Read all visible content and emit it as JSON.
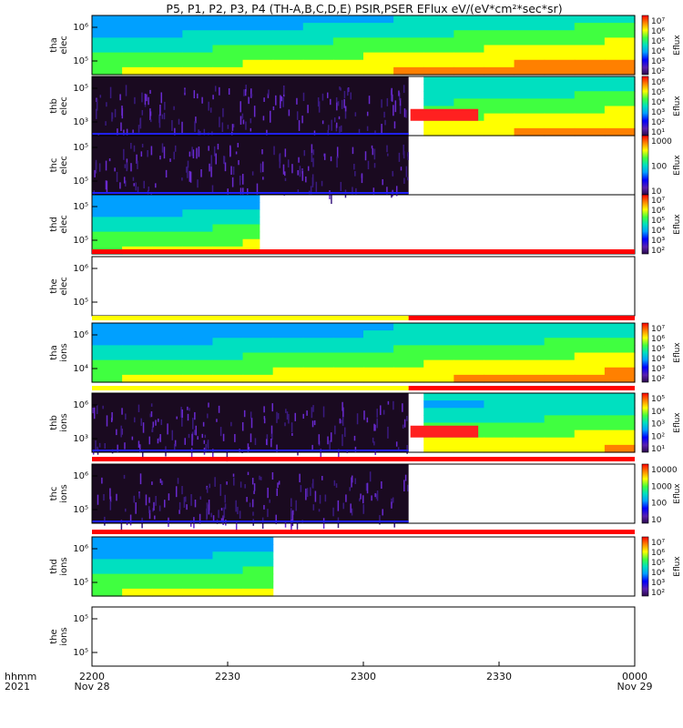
{
  "chart_data": {
    "type": "heatmap",
    "title": "P5, P1, P2, P3, P4 (TH-A,B,C,D,E) PSIR,PSER EFlux eV/(eV*cm²*sec*sr)",
    "time_axis": {
      "label_line1": "hhmm",
      "label_line2": "2021",
      "ticks": [
        {
          "label": "2200",
          "date": "Nov 28"
        },
        {
          "label": "2230",
          "date": ""
        },
        {
          "label": "2300",
          "date": ""
        },
        {
          "label": "2330",
          "date": ""
        },
        {
          "label": "0000",
          "date": "Nov 29"
        }
      ],
      "range": [
        "2021-11-28 22:00",
        "2021-11-29 00:00"
      ]
    },
    "panels": [
      {
        "probe": "tha",
        "species": "elec",
        "ytick_hi": "10⁶",
        "ytick_lo": "10⁵",
        "cbar_label": "Eflux",
        "cbar_ticks": [
          "10⁷",
          "10⁶",
          "10⁵",
          "10⁴",
          "10³",
          "10²"
        ],
        "data_until": "00:00",
        "bursty_until": "",
        "flag_colors": []
      },
      {
        "probe": "thb",
        "species": "elec",
        "ytick_hi": "10⁵",
        "ytick_lo": "10³",
        "cbar_label": "Eflux",
        "cbar_ticks": [
          "10⁶",
          "10⁵",
          "10⁴",
          "10³",
          "10²",
          "10¹"
        ],
        "data_until": "00:00",
        "bursty_until": "23:10",
        "flag_colors": []
      },
      {
        "probe": "thc",
        "species": "elec",
        "ytick_hi": "10⁵",
        "ytick_lo": "10⁵",
        "cbar_label": "Eflux",
        "cbar_ticks": [
          "1000",
          "100",
          "10"
        ],
        "data_until": "23:10",
        "bursty_until": "23:10",
        "flag_colors": []
      },
      {
        "probe": "thd",
        "species": "elec",
        "ytick_hi": "10⁵",
        "ytick_lo": "10⁵",
        "cbar_label": "Eflux",
        "cbar_ticks": [
          "10⁷",
          "10⁶",
          "10⁵",
          "10⁴",
          "10³",
          "10²"
        ],
        "data_until": "22:37",
        "bursty_until": "",
        "flag_colors": []
      },
      {
        "probe": "the",
        "species": "elec",
        "ytick_hi": "10⁶",
        "ytick_lo": "10⁵",
        "cbar_label": "",
        "cbar_ticks": [],
        "data_until": "",
        "bursty_until": "",
        "flag_colors": [
          "#ff0000"
        ]
      },
      {
        "probe": "tha",
        "species": "ions",
        "ytick_hi": "10⁶",
        "ytick_lo": "10⁴",
        "cbar_label": "Eflux",
        "cbar_ticks": [
          "10⁷",
          "10⁶",
          "10⁵",
          "10⁴",
          "10³",
          "10²"
        ],
        "data_until": "00:00",
        "bursty_until": "",
        "flag_colors": [
          "#ffff00",
          "#ff0000"
        ]
      },
      {
        "probe": "thb",
        "species": "ions",
        "ytick_hi": "10⁶",
        "ytick_lo": "10³",
        "cbar_label": "Eflux",
        "cbar_ticks": [
          "10⁵",
          "10⁴",
          "10³",
          "10²",
          "10¹"
        ],
        "data_until": "00:00",
        "bursty_until": "23:10",
        "flag_colors": [
          "#ffff00",
          "#ff0000"
        ]
      },
      {
        "probe": "thc",
        "species": "ions",
        "ytick_hi": "10⁶",
        "ytick_lo": "10⁵",
        "cbar_label": "Eflux",
        "cbar_ticks": [
          "10000",
          "1000",
          "100",
          "10"
        ],
        "data_until": "23:10",
        "bursty_until": "23:10",
        "flag_colors": [
          "#ff0000"
        ]
      },
      {
        "probe": "thd",
        "species": "ions",
        "ytick_hi": "10⁶",
        "ytick_lo": "10⁵",
        "cbar_label": "Eflux",
        "cbar_ticks": [
          "10⁷",
          "10⁶",
          "10⁵",
          "10⁴",
          "10³",
          "10²"
        ],
        "data_until": "22:40",
        "bursty_until": "",
        "flag_colors": [
          "#ff0000"
        ]
      },
      {
        "probe": "the",
        "species": "ions",
        "ytick_hi": "10⁵",
        "ytick_lo": "10⁵",
        "cbar_label": "",
        "cbar_ticks": [],
        "data_until": "",
        "bursty_until": "",
        "flag_colors": []
      }
    ]
  }
}
